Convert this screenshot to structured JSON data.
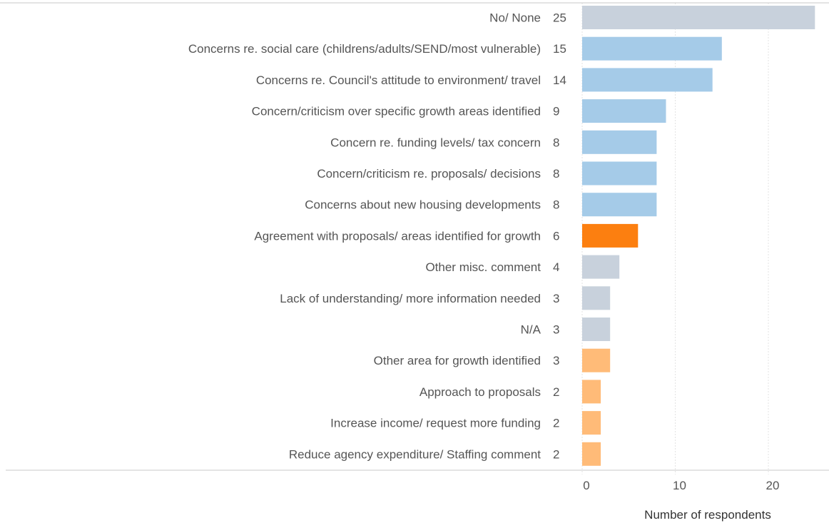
{
  "chart_data": {
    "type": "bar",
    "orientation": "horizontal",
    "title": "",
    "xlabel": "Number of respondents",
    "ylabel": "",
    "xlim": [
      0,
      25
    ],
    "x_ticks": [
      0,
      10,
      20
    ],
    "x_tick_labels": [
      "0",
      "10",
      "20"
    ],
    "grid": true,
    "legend": "none",
    "categories": [
      "No/ None",
      "Concerns re. social care (childrens/adults/SEND/most vulnerable)",
      "Concerns re. Council's attitude to environment/ travel",
      "Concern/criticism over specific growth areas identified",
      "Concern re. funding levels/ tax concern",
      "Concern/criticism re. proposals/ decisions",
      "Concerns about new housing developments",
      "Agreement with proposals/ areas identified for growth",
      "Other misc. comment",
      "Lack of understanding/ more information needed",
      "N/A",
      "Other area for growth identified",
      "Approach to proposals",
      "Increase income/ request more funding",
      "Reduce agency expenditure/ Staffing comment"
    ],
    "values": [
      25,
      15,
      14,
      9,
      8,
      8,
      8,
      6,
      4,
      3,
      3,
      3,
      2,
      2,
      2
    ],
    "value_labels": [
      "25",
      "15",
      "14",
      "9",
      "8",
      "8",
      "8",
      "6",
      "4",
      "3",
      "3",
      "3",
      "2",
      "2",
      "2"
    ],
    "bar_colors": [
      "#c8d1dc",
      "#a5cbe8",
      "#a5cbe8",
      "#a5cbe8",
      "#a5cbe8",
      "#a5cbe8",
      "#a5cbe8",
      "#fc7f10",
      "#c8d1dc",
      "#c8d1dc",
      "#c8d1dc",
      "#ffbb78",
      "#ffbb78",
      "#ffbb78",
      "#ffbb78"
    ],
    "colors": {
      "text": "#555555",
      "axis_line": "#c8c8c8",
      "grid": "#e3e3e3"
    }
  }
}
